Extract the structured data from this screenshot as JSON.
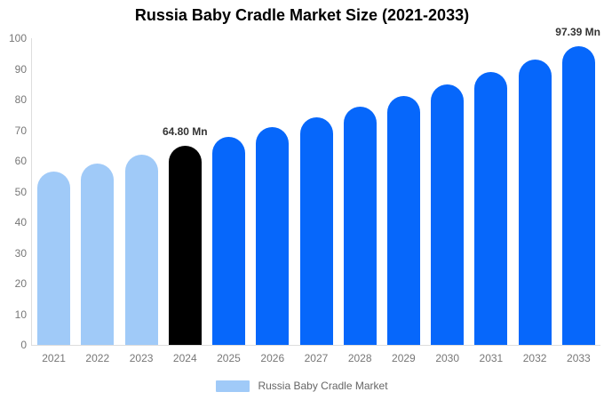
{
  "chart_data": {
    "type": "bar",
    "title": "Russia Baby Cradle Market Size (2021-2033)",
    "categories": [
      "2021",
      "2022",
      "2023",
      "2024",
      "2025",
      "2026",
      "2027",
      "2028",
      "2029",
      "2030",
      "2031",
      "2032",
      "2033"
    ],
    "values": [
      56.6,
      59.2,
      61.9,
      64.8,
      67.8,
      70.9,
      74.2,
      77.7,
      81.3,
      85.0,
      89.0,
      93.1,
      97.39
    ],
    "unit": "Mn",
    "xlabel": "",
    "ylabel": "",
    "ylim": [
      0,
      100
    ],
    "yticks": [
      0,
      10,
      20,
      30,
      40,
      50,
      60,
      70,
      80,
      90,
      100
    ],
    "grid": false,
    "bar_shape": "rounded-top",
    "color_roles": [
      "historical",
      "historical",
      "historical",
      "base_year",
      "forecast",
      "forecast",
      "forecast",
      "forecast",
      "forecast",
      "forecast",
      "forecast",
      "forecast",
      "forecast"
    ],
    "annotations": [
      {
        "index": 3,
        "text": "64.80 Mn"
      },
      {
        "index": 12,
        "text": "97.39 Mn"
      }
    ],
    "legend": {
      "position": "bottom",
      "label": "Russia Baby Cradle Market"
    },
    "colors": {
      "historical_bar": "#A0CAF8",
      "base_year_bar": "#000000",
      "forecast_bar": "#0667FB",
      "axis_line": "#DDDDDD",
      "tick_text": "#777777",
      "annotation_text": "#333333",
      "legend_text": "#666666",
      "title_text": "#000000",
      "background": "#FFFFFF"
    }
  }
}
